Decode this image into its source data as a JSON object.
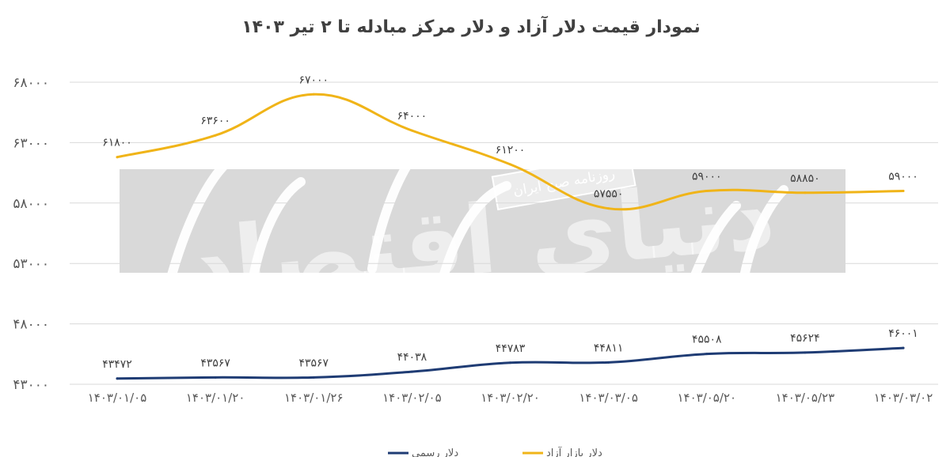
{
  "chart_data": {
    "type": "line",
    "title": "نمودار قیمت دلار آزاد و دلار مرکز مبادله تا ۲ تیر ۱۴۰۳",
    "categories": [
      "۱۴۰۳/۰۱/۰۵",
      "۱۴۰۳/۰۱/۲۰",
      "۱۴۰۳/۰۱/۲۶",
      "۱۴۰۳/۰۲/۰۵",
      "۱۴۰۳/۰۲/۲۰",
      "۱۴۰۳/۰۳/۰۵",
      "۱۴۰۳/۰۵/۲۰",
      "۱۴۰۳/۰۵/۲۳",
      "۱۴۰۳/۰۳/۰۲"
    ],
    "y_ticks": [
      43000,
      48000,
      53000,
      58000,
      63000,
      68000
    ],
    "y_tick_labels": [
      "۴۳۰۰۰",
      "۴۸۰۰۰",
      "۵۳۰۰۰",
      "۵۸۰۰۰",
      "۶۳۰۰۰",
      "۶۸۰۰۰"
    ],
    "ylim": [
      43000,
      68000
    ],
    "grid": true,
    "legend_position": "bottom",
    "series": [
      {
        "name": "دلار بازار آزاد",
        "color": "#f0b418",
        "values": [
          61800,
          63600,
          67000,
          64000,
          61200,
          57550,
          59000,
          58850,
          59000
        ],
        "labels": [
          "۶۱۸۰۰",
          "۶۳۶۰۰",
          "۶۷۰۰۰",
          "۶۴۰۰۰",
          "۶۱۲۰۰",
          "۵۷۵۵۰",
          "۵۹۰۰۰",
          "۵۸۸۵۰",
          "۵۹۰۰۰"
        ]
      },
      {
        "name": "دلار رسمی",
        "color": "#1f3c74",
        "values": [
          43472,
          43567,
          43567,
          44038,
          44783,
          44811,
          45508,
          45624,
          46001
        ],
        "labels": [
          "۴۳۴۷۲",
          "۴۳۵۶۷",
          "۴۳۵۶۷",
          "۴۴۰۳۸",
          "۴۴۷۸۳",
          "۴۴۸۱۱",
          "۴۵۵۰۸",
          "۴۵۶۲۴",
          "۴۶۰۰۱"
        ]
      }
    ]
  },
  "watermark": {
    "brand": "دنیای اقتصاد",
    "subtitle": "روزنامه صبح ایران",
    "band_color": "#d9d9d9"
  }
}
